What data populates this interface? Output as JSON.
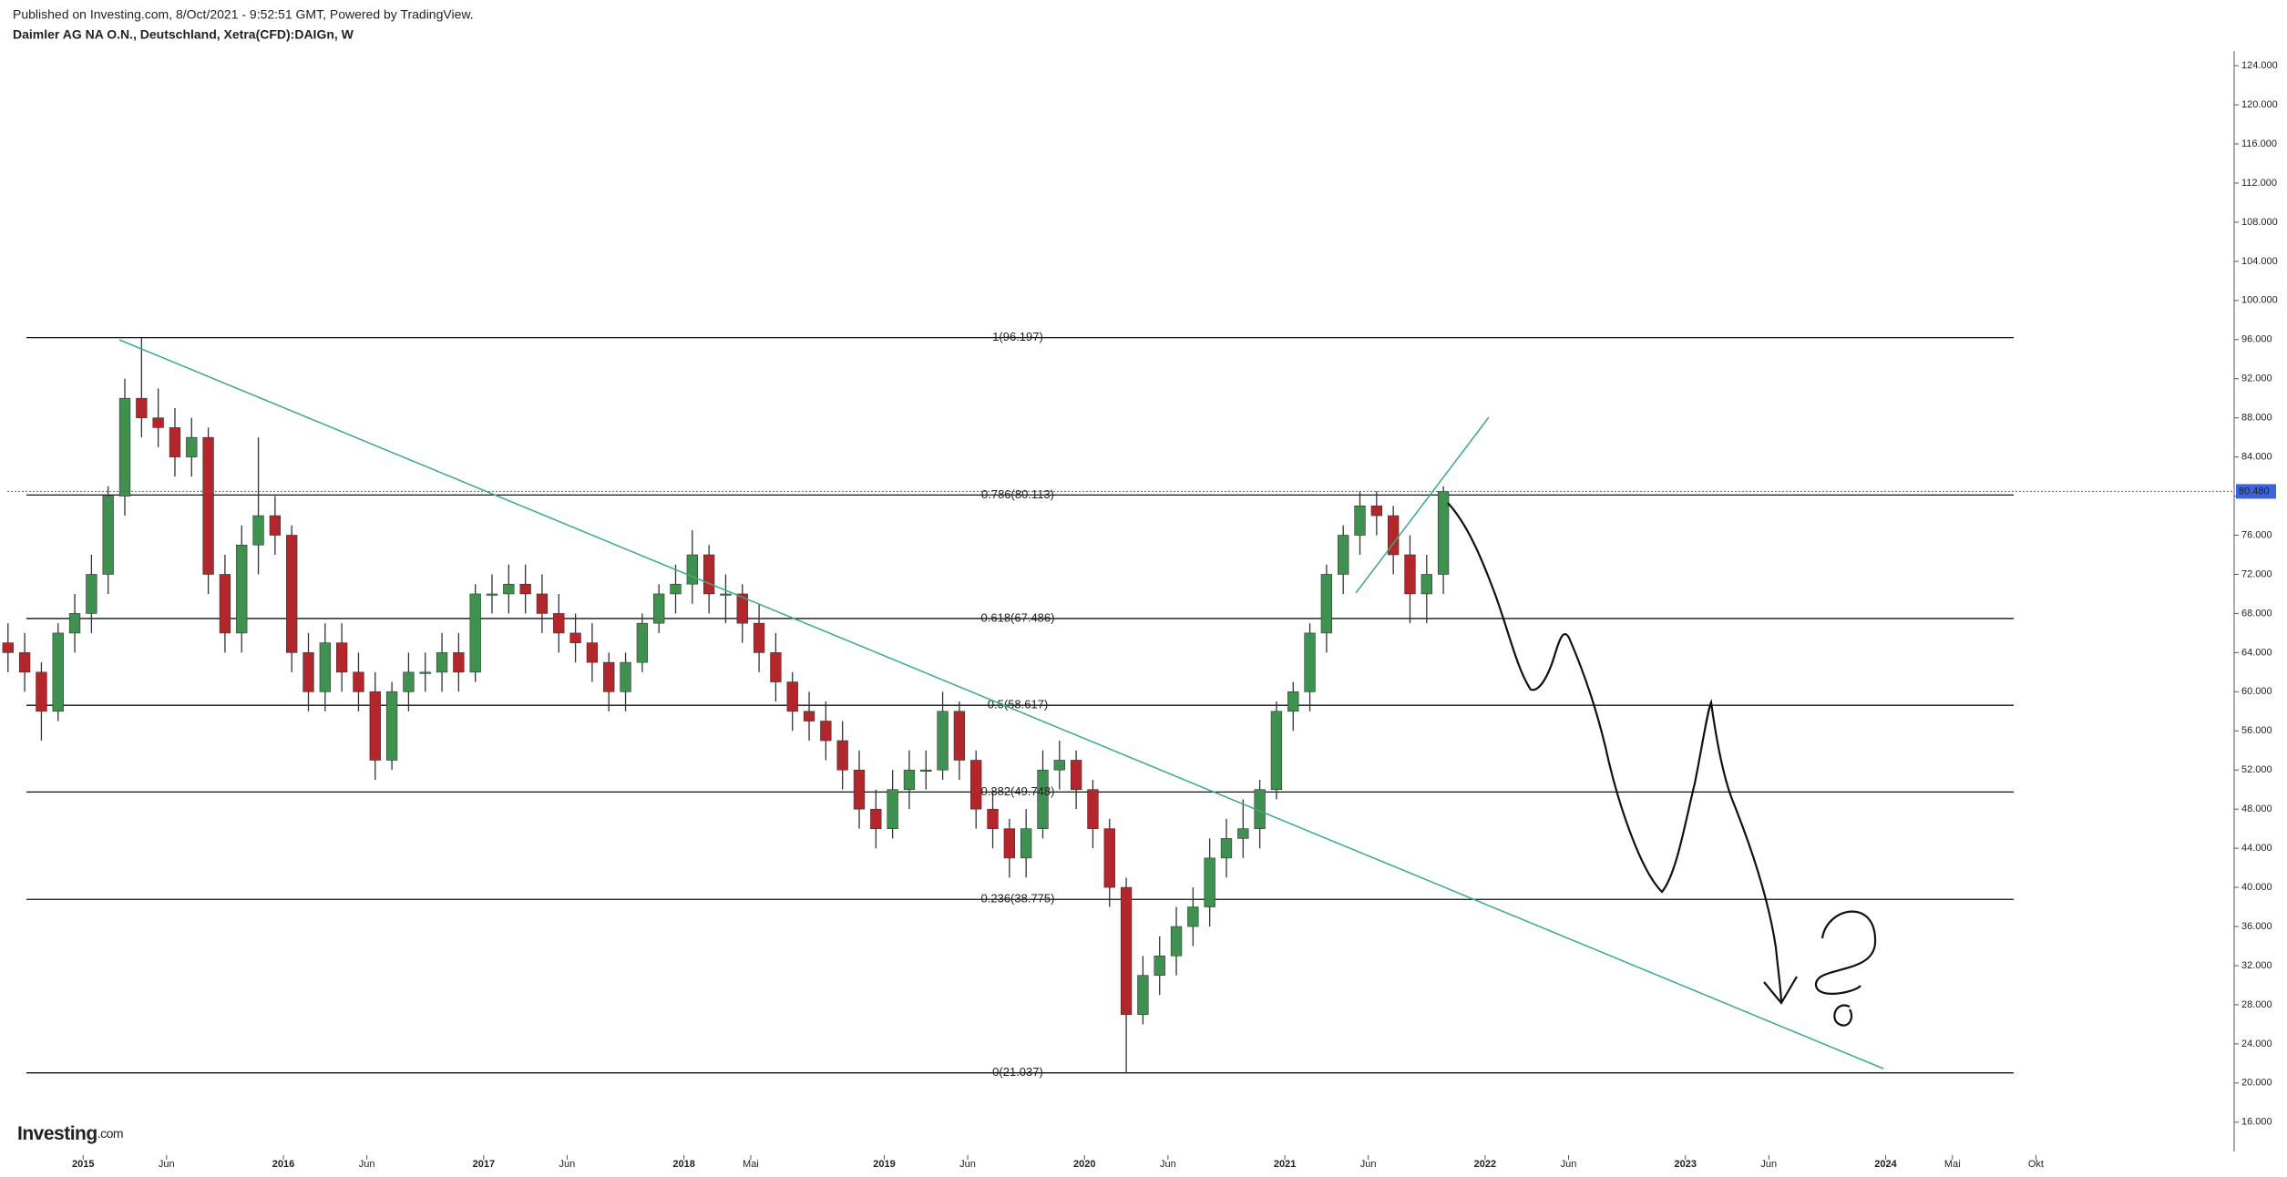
{
  "chart_data": {
    "type": "candlestick",
    "published": "Published on Investing.com, 8/Oct/2021 - 9:52:51 GMT, Powered by TradingView.",
    "title": "Daimler AG NA O.N., Deutschland, Xetra(CFD):DAIGn, W",
    "logo": "Investing",
    "logo_suffix": ".com",
    "up_color": "#3f9150",
    "down_color": "#b3262b",
    "x": [
      "2014-08",
      "2014-09",
      "2014-10",
      "2014-11",
      "2014-12",
      "2015-01",
      "2015-02",
      "2015-03",
      "2015-04",
      "2015-05",
      "2015-06",
      "2015-07",
      "2015-08",
      "2015-09",
      "2015-10",
      "2015-11",
      "2015-12",
      "2016-01",
      "2016-02",
      "2016-03",
      "2016-04",
      "2016-05",
      "2016-06",
      "2016-07",
      "2016-08",
      "2016-09",
      "2016-10",
      "2016-11",
      "2016-12",
      "2017-01",
      "2017-02",
      "2017-03",
      "2017-04",
      "2017-05",
      "2017-06",
      "2017-07",
      "2017-08",
      "2017-09",
      "2017-10",
      "2017-11",
      "2017-12",
      "2018-01",
      "2018-02",
      "2018-03",
      "2018-04",
      "2018-05",
      "2018-06",
      "2018-07",
      "2018-08",
      "2018-09",
      "2018-10",
      "2018-11",
      "2018-12",
      "2019-01",
      "2019-02",
      "2019-03",
      "2019-04",
      "2019-05",
      "2019-06",
      "2019-07",
      "2019-08",
      "2019-09",
      "2019-10",
      "2019-11",
      "2019-12",
      "2020-01",
      "2020-02",
      "2020-03",
      "2020-04",
      "2020-05",
      "2020-06",
      "2020-07",
      "2020-08",
      "2020-09",
      "2020-10",
      "2020-11",
      "2020-12",
      "2021-01",
      "2021-02",
      "2021-03",
      "2021-04",
      "2021-05",
      "2021-06",
      "2021-07",
      "2021-08",
      "2021-09",
      "2021-10"
    ],
    "open": [
      65,
      64,
      62,
      58,
      66,
      68,
      72,
      80,
      90,
      88,
      87,
      84,
      86,
      72,
      66,
      75,
      78,
      76,
      64,
      60,
      65,
      62,
      60,
      53,
      60,
      62,
      62,
      64,
      62,
      70,
      70,
      71,
      70,
      68,
      66,
      65,
      63,
      60,
      63,
      67,
      70,
      71,
      74,
      70,
      70,
      67,
      64,
      61,
      58,
      57,
      55,
      52,
      48,
      46,
      50,
      52,
      52,
      58,
      53,
      48,
      46,
      43,
      46,
      52,
      53,
      50,
      46,
      40,
      27,
      31,
      33,
      36,
      38,
      43,
      45,
      46,
      50,
      58,
      60,
      66,
      72,
      76,
      79,
      78,
      74,
      70,
      72
    ],
    "high": [
      67,
      66,
      63,
      67,
      70,
      74,
      81,
      92,
      96.197,
      91,
      89,
      88,
      87,
      74,
      77,
      86,
      80,
      77,
      66,
      67,
      67,
      64,
      62,
      61,
      64,
      64,
      66,
      66,
      71,
      72,
      73,
      73,
      72,
      70,
      68,
      67,
      64,
      64,
      68,
      71,
      73,
      76.5,
      75,
      72,
      71,
      69,
      66,
      62,
      60,
      59,
      57,
      54,
      50,
      52,
      54,
      54,
      60,
      59,
      54,
      50,
      47,
      48,
      54,
      55,
      54,
      51,
      47,
      41,
      33,
      35,
      38,
      40,
      45,
      47,
      49,
      51,
      59,
      61,
      67,
      73,
      77,
      80.5,
      80.5,
      79,
      76,
      74,
      81
    ],
    "low": [
      62,
      60,
      55,
      57,
      64,
      66,
      70,
      78,
      86,
      85,
      82,
      82,
      70,
      64,
      64,
      72,
      74,
      62,
      58,
      58,
      60,
      58,
      51,
      52,
      58,
      60,
      60,
      60,
      61,
      68,
      68,
      68,
      66,
      64,
      63,
      61,
      58,
      58,
      62,
      66,
      68,
      69,
      68,
      67,
      65,
      62,
      59,
      56,
      55,
      53,
      50,
      46,
      44,
      45,
      48,
      50,
      51,
      51,
      46,
      44,
      41,
      41,
      45,
      50,
      48,
      44,
      38,
      21.037,
      26,
      29,
      31,
      34,
      36,
      41,
      43,
      44,
      49,
      56,
      58,
      64,
      70,
      74,
      76,
      72,
      67,
      67,
      70
    ],
    "close": [
      64,
      62,
      58,
      66,
      68,
      72,
      80,
      90,
      88,
      87,
      84,
      86,
      72,
      66,
      75,
      78,
      76,
      64,
      60,
      65,
      62,
      60,
      53,
      60,
      62,
      62,
      64,
      62,
      70,
      70,
      71,
      70,
      68,
      66,
      65,
      63,
      60,
      63,
      67,
      70,
      71,
      74,
      70,
      70,
      67,
      64,
      61,
      58,
      57,
      55,
      52,
      48,
      46,
      50,
      52,
      52,
      58,
      53,
      48,
      46,
      43,
      46,
      52,
      53,
      50,
      46,
      40,
      27,
      31,
      33,
      36,
      38,
      43,
      45,
      46,
      50,
      58,
      60,
      66,
      72,
      76,
      79,
      78,
      74,
      70,
      72,
      80.48
    ],
    "xlim": [
      2014.585,
      2025.74
    ],
    "ylim": [
      13,
      125.5
    ],
    "xticks": [
      {
        "value": "2015-01",
        "label": "2015"
      },
      {
        "value": "2015-06",
        "label": "Jun"
      },
      {
        "value": "2016-01",
        "label": "2016"
      },
      {
        "value": "2016-06",
        "label": "Jun"
      },
      {
        "value": "2017-01",
        "label": "2017"
      },
      {
        "value": "2017-06",
        "label": "Jun"
      },
      {
        "value": "2018-01",
        "label": "2018"
      },
      {
        "value": "2018-05",
        "label": "Mai"
      },
      {
        "value": "2019-01",
        "label": "2019"
      },
      {
        "value": "2019-06",
        "label": "Jun"
      },
      {
        "value": "2020-01",
        "label": "2020"
      },
      {
        "value": "2020-06",
        "label": "Jun"
      },
      {
        "value": "2021-01",
        "label": "2021"
      },
      {
        "value": "2021-06",
        "label": "Jun"
      },
      {
        "value": "2022-01",
        "label": "2022"
      },
      {
        "value": "2022-06",
        "label": "Jun"
      },
      {
        "value": "2023-01",
        "label": "2023"
      },
      {
        "value": "2023-06",
        "label": "Jun"
      },
      {
        "value": "2024-01",
        "label": "2024"
      },
      {
        "value": "2024-05",
        "label": "Mai"
      },
      {
        "value": "2024-10",
        "label": "Okt"
      }
    ],
    "yticks": [
      {
        "value": 16,
        "label": "16.000"
      },
      {
        "value": 20,
        "label": "20.000"
      },
      {
        "value": 24,
        "label": "24.000"
      },
      {
        "value": 28,
        "label": "28.000"
      },
      {
        "value": 32,
        "label": "32.000"
      },
      {
        "value": 36,
        "label": "36.000"
      },
      {
        "value": 40,
        "label": "40.000"
      },
      {
        "value": 44,
        "label": "44.000"
      },
      {
        "value": 48,
        "label": "48.000"
      },
      {
        "value": 52,
        "label": "52.000"
      },
      {
        "value": 56,
        "label": "56.000"
      },
      {
        "value": 60,
        "label": "60.000"
      },
      {
        "value": 64,
        "label": "64.000"
      },
      {
        "value": 68,
        "label": "68.000"
      },
      {
        "value": 72,
        "label": "72.000"
      },
      {
        "value": 76,
        "label": "76.000"
      },
      {
        "value": 80,
        "label": "80.000"
      },
      {
        "value": 84,
        "label": "84.000"
      },
      {
        "value": 88,
        "label": "88.000"
      },
      {
        "value": 92,
        "label": "92.000"
      },
      {
        "value": 96,
        "label": "96.000"
      },
      {
        "value": 100,
        "label": "100.000"
      },
      {
        "value": 104,
        "label": "104.000"
      },
      {
        "value": 108,
        "label": "108.000"
      },
      {
        "value": 112,
        "label": "112.000"
      },
      {
        "value": 116,
        "label": "116.000"
      },
      {
        "value": 120,
        "label": "120.000"
      },
      {
        "value": 124,
        "label": "124.000"
      }
    ],
    "fib_levels": [
      {
        "value": 96.197,
        "label": "1(96.197)"
      },
      {
        "value": 80.113,
        "label": "0.786(80.113)"
      },
      {
        "value": 67.486,
        "label": "0.618(67.486)"
      },
      {
        "value": 58.617,
        "label": "0.5(58.617)"
      },
      {
        "value": 49.748,
        "label": "0.382(49.748)"
      },
      {
        "value": 38.775,
        "label": "0.236(38.775)"
      },
      {
        "value": 21.037,
        "label": "0(21.037)"
      }
    ],
    "last_price": {
      "value": 80.48,
      "label": "80.480"
    }
  }
}
